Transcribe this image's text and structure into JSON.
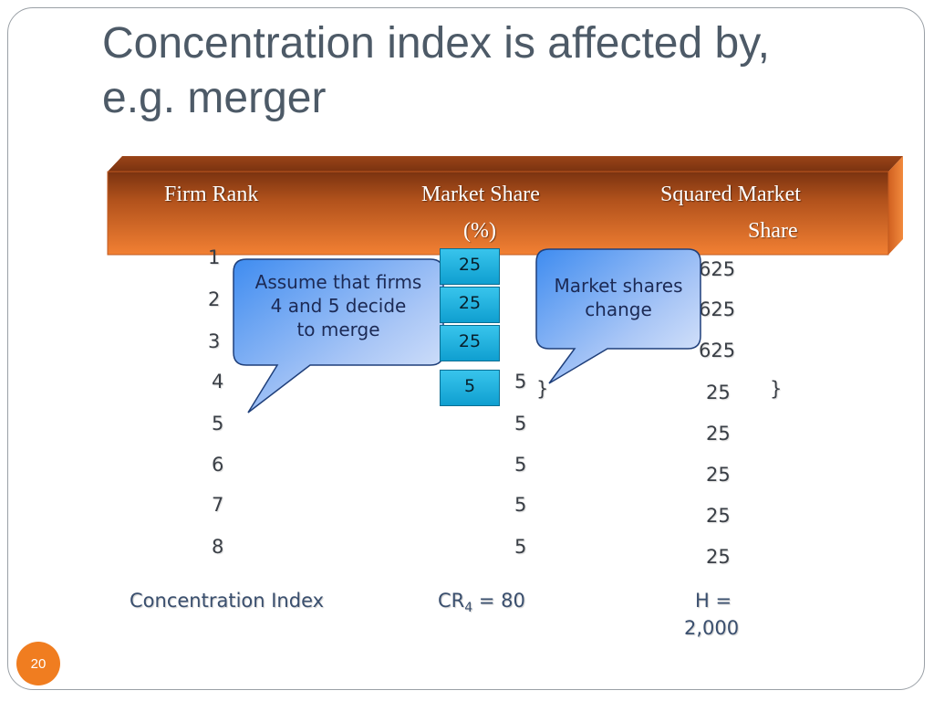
{
  "title": {
    "line1": "Concentration index is affected by,",
    "line2": "e.g. merger"
  },
  "table": {
    "headers": {
      "rank": "Firm Rank",
      "share_line1": "Market Share",
      "share_line2": "(%)",
      "squared_line1": "Squared Market",
      "squared_line2": "Share"
    },
    "rows": [
      {
        "rank": "1",
        "share": "25",
        "squared": "625"
      },
      {
        "rank": "2",
        "share": "25",
        "squared": "625"
      },
      {
        "rank": "3",
        "share": "25",
        "squared": "625"
      },
      {
        "rank": "4",
        "share": "5",
        "squared": "25"
      },
      {
        "rank": "5",
        "share": "5",
        "squared": "25"
      },
      {
        "rank": "6",
        "share": "5",
        "squared": "25"
      },
      {
        "rank": "7",
        "share": "5",
        "squared": "25"
      },
      {
        "rank": "8",
        "share": "5",
        "squared": "25"
      }
    ],
    "brace": "}",
    "footer": {
      "label": "Concentration Index",
      "cr_prefix": "CR",
      "cr_sub": "4",
      "cr_value": " = 80",
      "h_line1": "H =",
      "h_line2": "2,000"
    }
  },
  "overlay_boxes": [
    "25",
    "25",
    "25",
    "5"
  ],
  "callouts": {
    "left_line1": "Assume that firms",
    "left_line2": "4 and 5 decide",
    "left_line3": "to merge",
    "right_line1": "Market shares",
    "right_line2": "change"
  },
  "slide_number": "20",
  "colors": {
    "header_top": "#8a3a12",
    "header_bottom": "#f07a30",
    "callout_fill_top": "#5b9df5",
    "callout_fill_bottom": "#d8e4fb",
    "box_fill": "#1aa9dc",
    "slide_badge": "#f07d20"
  }
}
